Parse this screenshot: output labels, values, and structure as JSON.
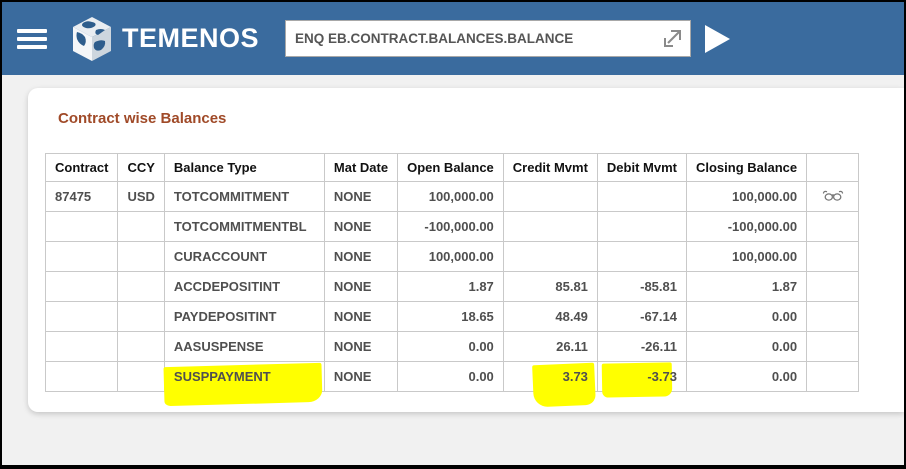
{
  "colors": {
    "topbar_blue": "#3a6b9e",
    "title_brown": "#a04a28",
    "highlight_yellow": "#ffff00",
    "cell_text_gray": "#4f4f4f"
  },
  "header": {
    "logo_text": "TEMENOS",
    "command_value": "ENQ EB.CONTRACT.BALANCES.BALANCE"
  },
  "content": {
    "title": "Contract wise Balances",
    "table": {
      "columns": [
        "Contract",
        "CCY",
        "Balance Type",
        "Mat Date",
        "Open Balance",
        "Credit Mvmt",
        "Debit Mvmt",
        "Closing Balance",
        ""
      ],
      "rows": [
        {
          "contract": "87475",
          "ccy": "USD",
          "balance_type": "TOTCOMMITMENT",
          "mat_date": "NONE",
          "open_balance": "100,000.00",
          "credit_mvmt": "",
          "debit_mvmt": "",
          "closing_balance": "100,000.00",
          "has_view_icon": true,
          "highlight": []
        },
        {
          "contract": "",
          "ccy": "",
          "balance_type": "TOTCOMMITMENTBL",
          "mat_date": "NONE",
          "open_balance": "-100,000.00",
          "credit_mvmt": "",
          "debit_mvmt": "",
          "closing_balance": "-100,000.00",
          "has_view_icon": false,
          "highlight": []
        },
        {
          "contract": "",
          "ccy": "",
          "balance_type": "CURACCOUNT",
          "mat_date": "NONE",
          "open_balance": "100,000.00",
          "credit_mvmt": "",
          "debit_mvmt": "",
          "closing_balance": "100,000.00",
          "has_view_icon": false,
          "highlight": []
        },
        {
          "contract": "",
          "ccy": "",
          "balance_type": "ACCDEPOSITINT",
          "mat_date": "NONE",
          "open_balance": "1.87",
          "credit_mvmt": "85.81",
          "debit_mvmt": "-85.81",
          "closing_balance": "1.87",
          "has_view_icon": false,
          "highlight": []
        },
        {
          "contract": "",
          "ccy": "",
          "balance_type": "PAYDEPOSITINT",
          "mat_date": "NONE",
          "open_balance": "18.65",
          "credit_mvmt": "48.49",
          "debit_mvmt": "-67.14",
          "closing_balance": "0.00",
          "has_view_icon": false,
          "highlight": []
        },
        {
          "contract": "",
          "ccy": "",
          "balance_type": "AASUSPENSE",
          "mat_date": "NONE",
          "open_balance": "0.00",
          "credit_mvmt": "26.11",
          "debit_mvmt": "-26.11",
          "closing_balance": "0.00",
          "has_view_icon": false,
          "highlight": []
        },
        {
          "contract": "",
          "ccy": "",
          "balance_type": "SUSPPAYMENT",
          "mat_date": "NONE",
          "open_balance": "0.00",
          "credit_mvmt": "3.73",
          "debit_mvmt": "-3.73",
          "closing_balance": "0.00",
          "has_view_icon": false,
          "highlight": [
            "balance_type",
            "credit_mvmt",
            "debit_mvmt"
          ]
        }
      ]
    }
  }
}
